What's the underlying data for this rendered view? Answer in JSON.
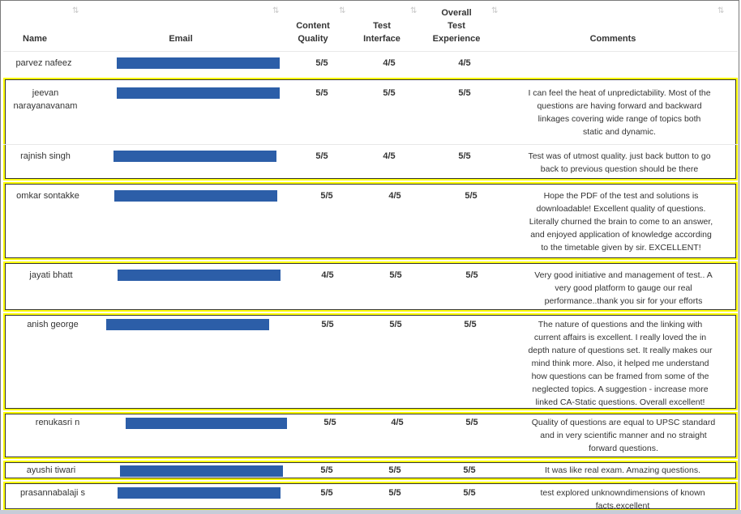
{
  "table": {
    "columns": {
      "name": "Name",
      "email": "Email",
      "content_quality": [
        "Content",
        "Quality"
      ],
      "test_interface": [
        "Test",
        "Interface"
      ],
      "overall": [
        "Overall",
        "Test",
        "Experience"
      ],
      "comments": "Comments"
    },
    "sort_icon": "sort-arrows-icon",
    "redaction_color": "#2c5ea8",
    "highlight_color": "#ffff00",
    "rows": [
      {
        "name": [
          "parvez nafeez"
        ],
        "content": "5/5",
        "interface": "4/5",
        "overall": "4/5",
        "comment": []
      },
      {
        "name": [
          "jeevan",
          "narayanavanam"
        ],
        "content": "5/5",
        "interface": "5/5",
        "overall": "5/5",
        "comment": [
          "I can feel the heat of unpredictability. Most of the",
          "questions are having forward and backward",
          "linkages covering wide range of topics both",
          "static and dynamic."
        ]
      },
      {
        "name": [
          "rajnish singh"
        ],
        "content": "5/5",
        "interface": "4/5",
        "overall": "5/5",
        "comment": [
          "Test was of utmost quality. just back button to go",
          "back to previous question should be there"
        ]
      },
      {
        "name": [
          "omkar sontakke"
        ],
        "content": "5/5",
        "interface": "4/5",
        "overall": "5/5",
        "comment": [
          "Hope the PDF of the test and solutions is",
          "downloadable! Excellent quality of questions.",
          "Literally churned the brain to come to an answer,",
          "and enjoyed application of knowledge according",
          "to the timetable given by sir. EXCELLENT!"
        ]
      },
      {
        "name": [
          "jayati bhatt"
        ],
        "content": "4/5",
        "interface": "5/5",
        "overall": "5/5",
        "comment": [
          "Very good initiative and management of test.. A",
          "very good platform to gauge our real",
          "performance..thank you sir for your efforts"
        ]
      },
      {
        "name": [
          "anish george"
        ],
        "content": "5/5",
        "interface": "5/5",
        "overall": "5/5",
        "comment": [
          "The nature of questions and the linking with",
          "current affairs is excellent. I really loved the in",
          "depth nature of questions set. It really makes our",
          "mind think more. Also, it helped me understand",
          "how questions can be framed from some of the",
          "neglected topics. A suggestion - increase more",
          "linked CA-Static questions. Overall excellent!"
        ]
      },
      {
        "name": [
          "renukasri n"
        ],
        "content": "5/5",
        "interface": "4/5",
        "overall": "5/5",
        "comment": [
          "Quality of questions are equal to UPSC standard",
          "and in very scientific manner and no straight",
          "forward questions."
        ]
      },
      {
        "name": [
          "ayushi tiwari"
        ],
        "content": "5/5",
        "interface": "5/5",
        "overall": "5/5",
        "comment": [
          "It was like real exam. Amazing questions."
        ]
      },
      {
        "name": [
          "prasannabalaji s"
        ],
        "content": "5/5",
        "interface": "5/5",
        "overall": "5/5",
        "comment": [
          "test explored unknowndimensions of known",
          "facts.excellent"
        ]
      }
    ]
  }
}
